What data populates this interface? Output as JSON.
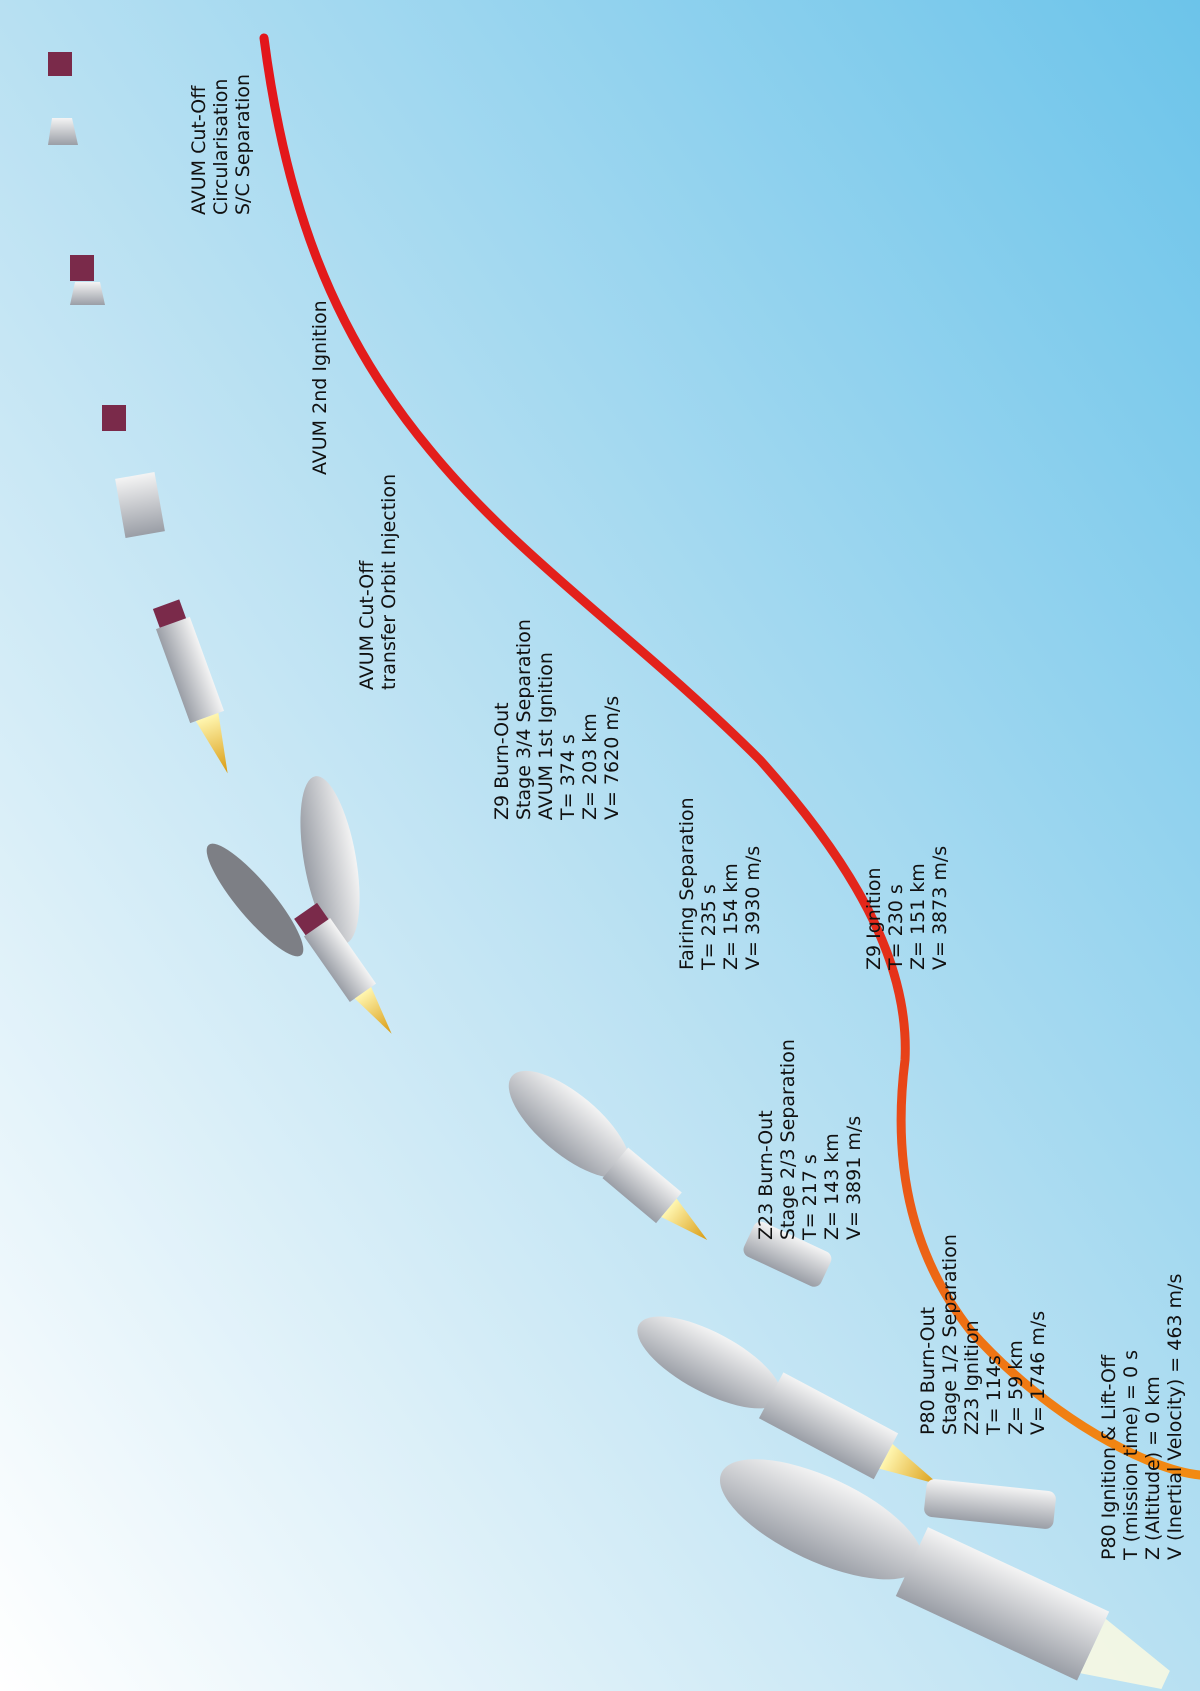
{
  "events": [
    {
      "lines": [
        "AVUM Cut-Off",
        "Circularisation",
        "S/C Separation"
      ]
    },
    {
      "lines": [
        "AVUM 2nd Ignition"
      ]
    },
    {
      "lines": [
        "AVUM Cut-Off",
        "transfer Orbit Injection"
      ]
    },
    {
      "lines": [
        "Z9 Burn-Out",
        "Stage 3/4 Separation",
        "AVUM 1st Ignition",
        "T= 374 s",
        "Z= 203 km",
        "V= 7620 m/s"
      ]
    },
    {
      "lines": [
        "Fairing Separation",
        "T= 235 s",
        "Z= 154 km",
        "V= 3930 m/s"
      ]
    },
    {
      "lines": [
        "Z9 Ignition",
        "T= 230 s",
        "Z= 151 km",
        "V= 3873 m/s"
      ]
    },
    {
      "lines": [
        "Z23 Burn-Out",
        "Stage 2/3 Separation",
        "T= 217 s",
        "Z= 143 km",
        "V= 3891 m/s"
      ]
    },
    {
      "lines": [
        "P80 Burn-Out",
        "Stage 1/2 Separation",
        "Z23 Ignition",
        "T= 114s",
        "Z= 59 km",
        "V= 1746 m/s"
      ]
    },
    {
      "lines": [
        "P80 Ignition & Lift-Off",
        "T (mission time) = 0 s",
        "Z (Altitude) = 0 km",
        "V (Inertial Velocity) = 463 m/s"
      ]
    }
  ]
}
